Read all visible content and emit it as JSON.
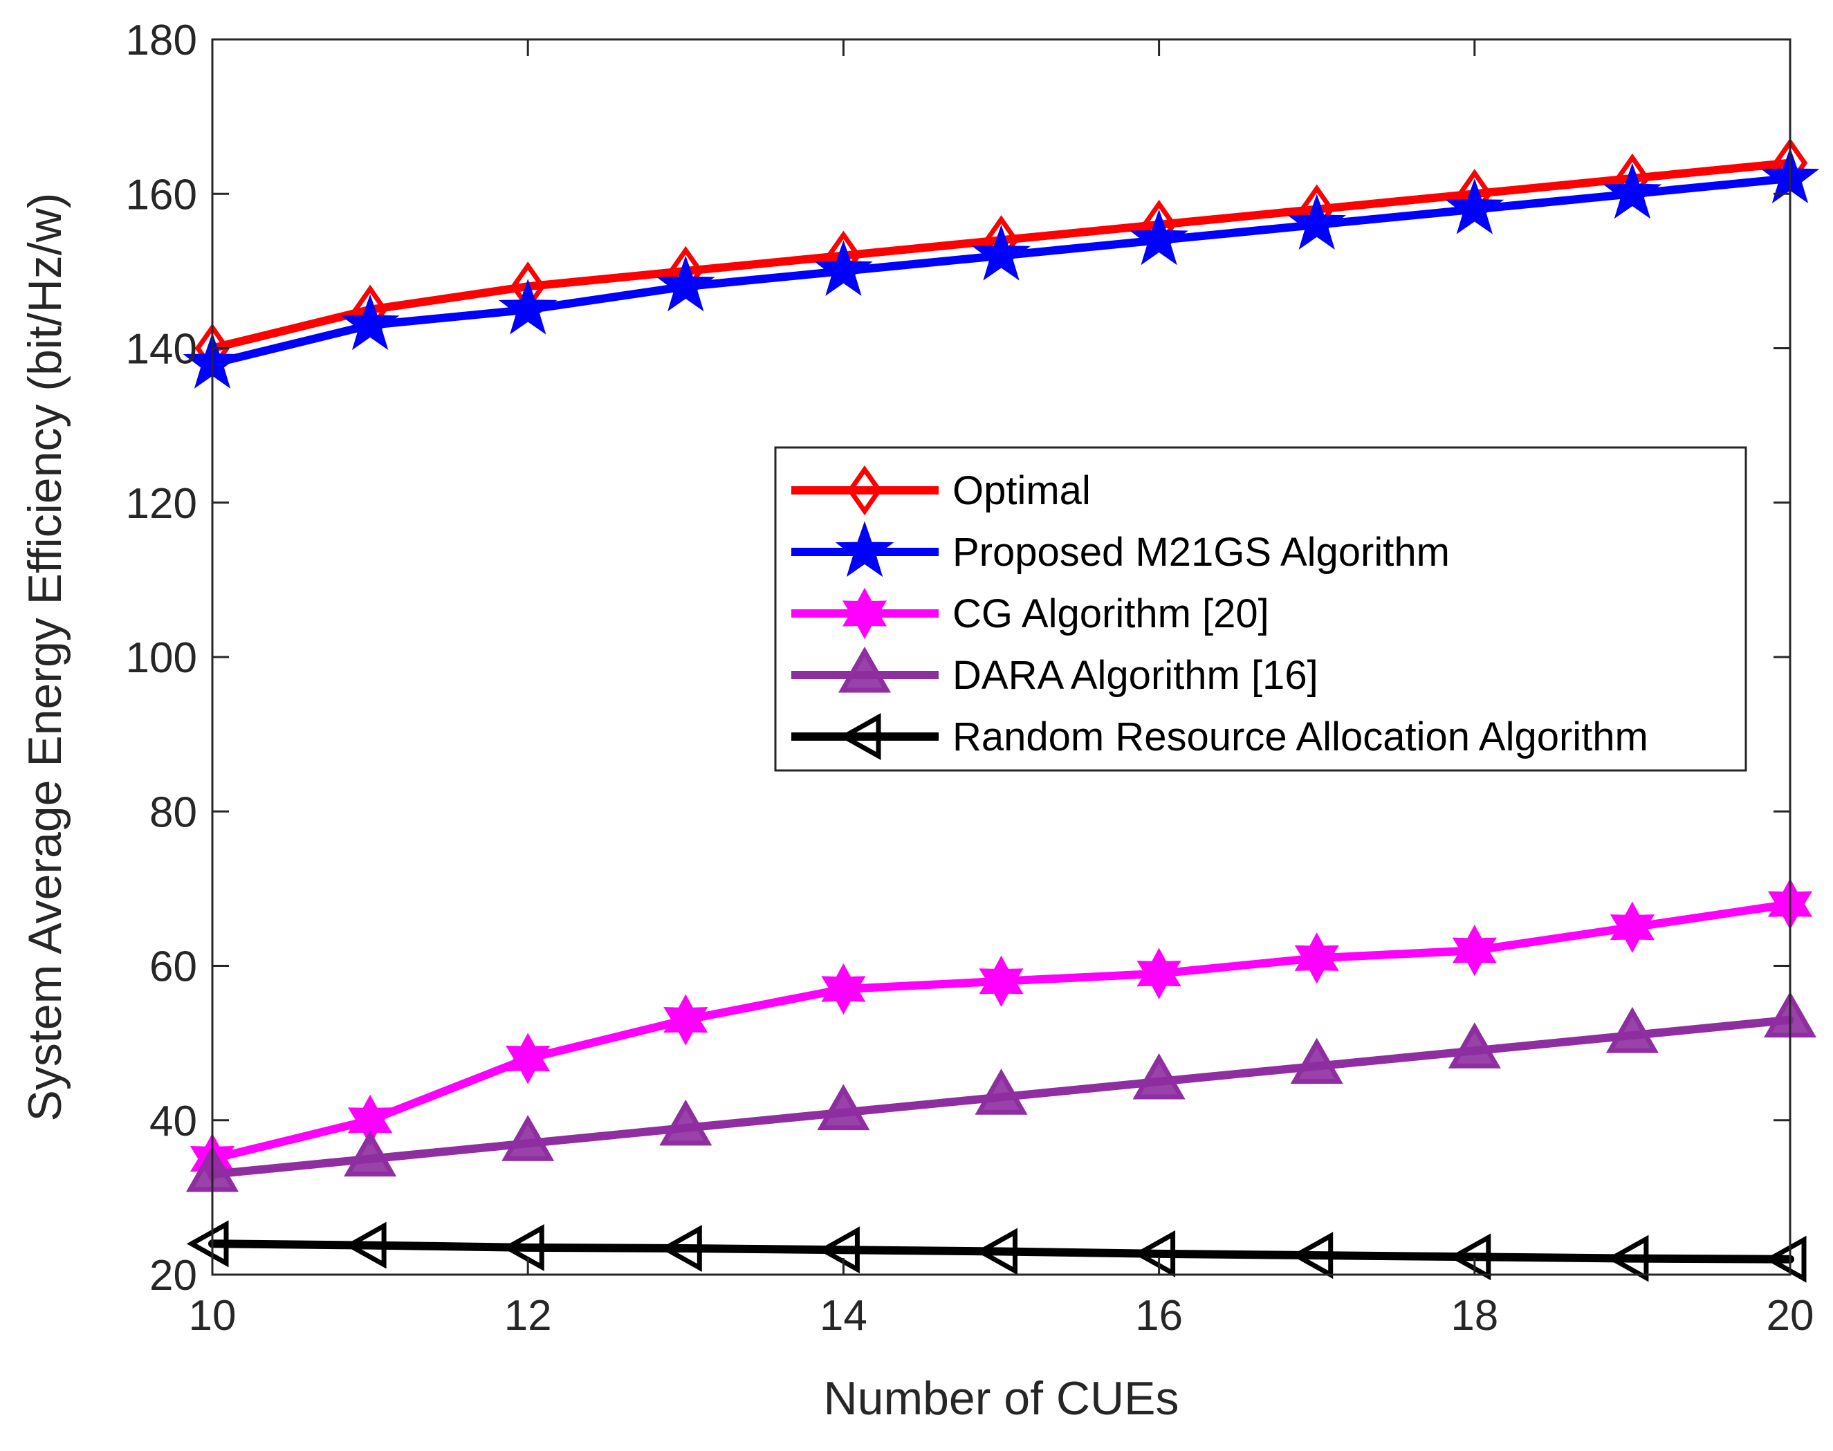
{
  "chart_data": {
    "type": "line",
    "title": "",
    "xlabel": "Number of CUEs",
    "ylabel": "System Average Energy Efficiency (bit/Hz/w)",
    "xlim": [
      10,
      20
    ],
    "ylim": [
      20,
      180
    ],
    "xticks": [
      10,
      12,
      14,
      16,
      18,
      20
    ],
    "yticks": [
      20,
      40,
      60,
      80,
      100,
      120,
      140,
      160,
      180
    ],
    "grid": false,
    "legend_position": "center-right",
    "x": [
      10,
      11,
      12,
      13,
      14,
      15,
      16,
      17,
      18,
      19,
      20
    ],
    "series": [
      {
        "name": "Optimal",
        "color": "#ff0000",
        "marker": "diamond",
        "values": [
          140,
          145,
          148,
          150,
          152,
          154,
          156,
          158,
          160,
          162,
          164
        ]
      },
      {
        "name": "Proposed M21GS Algorithm",
        "color": "#0000ff",
        "marker": "star",
        "values": [
          138,
          143,
          145,
          148,
          150,
          152,
          154,
          156,
          158,
          160,
          162
        ]
      },
      {
        "name": "CG Algorithm [20]",
        "color": "#ff00ff",
        "marker": "hexagram",
        "values": [
          35,
          40,
          48,
          53,
          57,
          58,
          59,
          61,
          62,
          65,
          68
        ]
      },
      {
        "name": "DARA Algorithm [16]",
        "color": "#8e2ea0",
        "marker": "triangle-up",
        "values": [
          33,
          35,
          37,
          39,
          41,
          43,
          45,
          47,
          49,
          51,
          53
        ]
      },
      {
        "name": "Random Resource Allocation Algorithm",
        "color": "#000000",
        "marker": "triangle-left",
        "values": [
          24,
          23.8,
          23.5,
          23.4,
          23.2,
          23,
          22.7,
          22.5,
          22.3,
          22.1,
          22
        ]
      }
    ]
  }
}
